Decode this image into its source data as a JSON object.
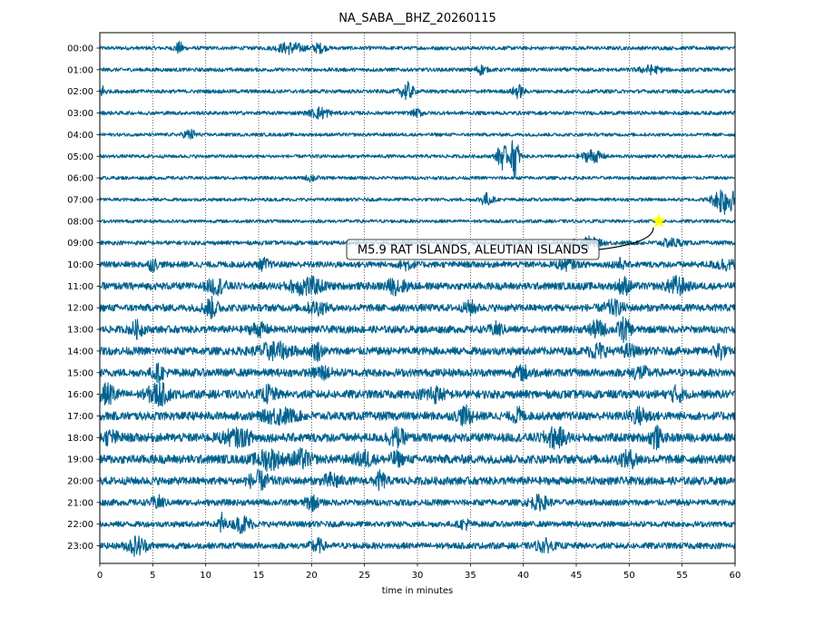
{
  "chart_data": {
    "type": "line",
    "title": "NA_SABA__BHZ_20260115",
    "xlabel": "time in minutes",
    "ylabel": "",
    "xlim": [
      0,
      60
    ],
    "x_ticks": [
      0,
      5,
      10,
      15,
      20,
      25,
      30,
      35,
      40,
      45,
      50,
      55,
      60
    ],
    "x_tick_labels": [
      "0",
      "5",
      "10",
      "15",
      "20",
      "25",
      "30",
      "35",
      "40",
      "45",
      "50",
      "55",
      "60"
    ],
    "grid": "vertical dotted",
    "trace_color": "#00628f",
    "rows": [
      {
        "label": "00:00",
        "noise": 0.18,
        "bursts": [
          {
            "t": 7.5,
            "a": 0.5,
            "w": 0.4
          },
          {
            "t": 18.0,
            "a": 0.5,
            "w": 1.2
          },
          {
            "t": 20.7,
            "a": 0.4,
            "w": 0.6
          }
        ]
      },
      {
        "label": "01:00",
        "noise": 0.18,
        "bursts": [
          {
            "t": 36.0,
            "a": 0.4,
            "w": 0.5
          },
          {
            "t": 52.0,
            "a": 0.35,
            "w": 1.0
          }
        ]
      },
      {
        "label": "02:00",
        "noise": 0.18,
        "bursts": [
          {
            "t": 0.3,
            "a": 0.5,
            "w": 0.3
          },
          {
            "t": 29.0,
            "a": 0.8,
            "w": 0.6
          },
          {
            "t": 39.5,
            "a": 0.6,
            "w": 0.5
          }
        ]
      },
      {
        "label": "03:00",
        "noise": 0.18,
        "bursts": [
          {
            "t": 20.8,
            "a": 0.5,
            "w": 0.9
          },
          {
            "t": 30.0,
            "a": 0.3,
            "w": 0.5
          }
        ]
      },
      {
        "label": "04:00",
        "noise": 0.16,
        "bursts": [
          {
            "t": 8.5,
            "a": 0.45,
            "w": 0.6
          }
        ]
      },
      {
        "label": "05:00",
        "noise": 0.16,
        "bursts": [
          {
            "t": 38.0,
            "a": 1.2,
            "w": 0.5
          },
          {
            "t": 39.2,
            "a": 2.0,
            "w": 0.4
          },
          {
            "t": 46.5,
            "a": 0.6,
            "w": 0.9
          }
        ]
      },
      {
        "label": "06:00",
        "noise": 0.16,
        "bursts": [
          {
            "t": 20.0,
            "a": 0.3,
            "w": 0.5
          }
        ]
      },
      {
        "label": "07:00",
        "noise": 0.16,
        "bursts": [
          {
            "t": 36.5,
            "a": 0.55,
            "w": 0.6
          },
          {
            "t": 59.0,
            "a": 1.4,
            "w": 1.0
          }
        ]
      },
      {
        "label": "08:00",
        "noise": 0.16,
        "bursts": []
      },
      {
        "label": "09:00",
        "noise": 0.2,
        "bursts": [
          {
            "t": 46.0,
            "a": 0.5,
            "w": 1.2
          },
          {
            "t": 54.0,
            "a": 0.35,
            "w": 1.0
          }
        ]
      },
      {
        "label": "10:00",
        "noise": 0.3,
        "bursts": [
          {
            "t": 5.0,
            "a": 0.5,
            "w": 0.4
          },
          {
            "t": 15.5,
            "a": 0.45,
            "w": 0.5
          },
          {
            "t": 29.0,
            "a": 0.4,
            "w": 0.6
          },
          {
            "t": 44.0,
            "a": 0.4,
            "w": 0.8
          },
          {
            "t": 49.0,
            "a": 0.45,
            "w": 0.5
          },
          {
            "t": 59.0,
            "a": 0.4,
            "w": 1.0
          }
        ]
      },
      {
        "label": "11:00",
        "noise": 0.35,
        "bursts": [
          {
            "t": 11.0,
            "a": 0.6,
            "w": 0.9
          },
          {
            "t": 19.5,
            "a": 0.75,
            "w": 1.5
          },
          {
            "t": 28.0,
            "a": 0.6,
            "w": 1.0
          },
          {
            "t": 49.5,
            "a": 0.7,
            "w": 0.6
          },
          {
            "t": 54.5,
            "a": 0.75,
            "w": 0.9
          }
        ]
      },
      {
        "label": "12:00",
        "noise": 0.35,
        "bursts": [
          {
            "t": 10.5,
            "a": 0.8,
            "w": 0.7
          },
          {
            "t": 20.5,
            "a": 0.5,
            "w": 0.9
          },
          {
            "t": 35.0,
            "a": 0.5,
            "w": 0.6
          },
          {
            "t": 48.5,
            "a": 0.55,
            "w": 0.9
          }
        ]
      },
      {
        "label": "13:00",
        "noise": 0.35,
        "bursts": [
          {
            "t": 3.5,
            "a": 0.65,
            "w": 0.6
          },
          {
            "t": 15.0,
            "a": 0.5,
            "w": 0.8
          },
          {
            "t": 37.5,
            "a": 0.5,
            "w": 0.6
          },
          {
            "t": 47.0,
            "a": 0.65,
            "w": 0.8
          },
          {
            "t": 49.5,
            "a": 0.95,
            "w": 0.6
          }
        ]
      },
      {
        "label": "14:00",
        "noise": 0.38,
        "bursts": [
          {
            "t": 16.5,
            "a": 0.65,
            "w": 1.6
          },
          {
            "t": 20.5,
            "a": 0.7,
            "w": 0.5
          },
          {
            "t": 47.0,
            "a": 0.6,
            "w": 0.8
          },
          {
            "t": 50.0,
            "a": 0.5,
            "w": 0.6
          },
          {
            "t": 58.5,
            "a": 0.7,
            "w": 0.5
          }
        ]
      },
      {
        "label": "15:00",
        "noise": 0.38,
        "bursts": [
          {
            "t": 5.5,
            "a": 0.6,
            "w": 0.6
          },
          {
            "t": 21.0,
            "a": 0.5,
            "w": 0.8
          },
          {
            "t": 40.0,
            "a": 0.5,
            "w": 0.8
          },
          {
            "t": 51.0,
            "a": 0.5,
            "w": 0.8
          }
        ]
      },
      {
        "label": "16:00",
        "noise": 0.4,
        "bursts": [
          {
            "t": 0.8,
            "a": 0.8,
            "w": 0.8
          },
          {
            "t": 5.5,
            "a": 0.9,
            "w": 1.0
          },
          {
            "t": 16.0,
            "a": 0.7,
            "w": 0.6
          },
          {
            "t": 31.5,
            "a": 0.6,
            "w": 1.0
          },
          {
            "t": 54.5,
            "a": 0.6,
            "w": 0.6
          }
        ]
      },
      {
        "label": "17:00",
        "noise": 0.4,
        "bursts": [
          {
            "t": 17.0,
            "a": 0.6,
            "w": 1.5
          },
          {
            "t": 34.5,
            "a": 0.7,
            "w": 0.7
          },
          {
            "t": 39.5,
            "a": 0.6,
            "w": 0.5
          },
          {
            "t": 51.0,
            "a": 0.6,
            "w": 1.0
          }
        ]
      },
      {
        "label": "18:00",
        "noise": 0.42,
        "bursts": [
          {
            "t": 1.0,
            "a": 0.5,
            "w": 0.8
          },
          {
            "t": 13.0,
            "a": 0.6,
            "w": 1.5
          },
          {
            "t": 28.0,
            "a": 0.7,
            "w": 0.8
          },
          {
            "t": 43.0,
            "a": 0.8,
            "w": 1.0
          },
          {
            "t": 52.5,
            "a": 0.9,
            "w": 0.5
          }
        ]
      },
      {
        "label": "19:00",
        "noise": 0.42,
        "bursts": [
          {
            "t": 16.0,
            "a": 0.8,
            "w": 1.2
          },
          {
            "t": 19.0,
            "a": 0.7,
            "w": 0.9
          },
          {
            "t": 25.0,
            "a": 0.6,
            "w": 0.8
          },
          {
            "t": 28.0,
            "a": 0.5,
            "w": 0.6
          },
          {
            "t": 50.0,
            "a": 0.6,
            "w": 0.9
          }
        ]
      },
      {
        "label": "20:00",
        "noise": 0.38,
        "bursts": [
          {
            "t": 15.0,
            "a": 0.7,
            "w": 1.0
          },
          {
            "t": 22.0,
            "a": 0.6,
            "w": 0.8
          },
          {
            "t": 26.5,
            "a": 0.7,
            "w": 0.5
          }
        ]
      },
      {
        "label": "21:00",
        "noise": 0.3,
        "bursts": [
          {
            "t": 5.5,
            "a": 0.5,
            "w": 0.6
          },
          {
            "t": 20.0,
            "a": 0.6,
            "w": 0.6
          },
          {
            "t": 41.5,
            "a": 0.55,
            "w": 0.9
          }
        ]
      },
      {
        "label": "22:00",
        "noise": 0.28,
        "bursts": [
          {
            "t": 11.5,
            "a": 1.0,
            "w": 0.3
          },
          {
            "t": 13.5,
            "a": 0.7,
            "w": 0.8
          },
          {
            "t": 34.5,
            "a": 0.4,
            "w": 0.5
          }
        ]
      },
      {
        "label": "23:00",
        "noise": 0.3,
        "bursts": [
          {
            "t": 3.5,
            "a": 0.8,
            "w": 0.9
          },
          {
            "t": 20.5,
            "a": 0.6,
            "w": 0.6
          },
          {
            "t": 42.0,
            "a": 0.5,
            "w": 0.8
          }
        ]
      }
    ],
    "events": [
      {
        "label": "M5.9 RAT ISLANDS, ALEUTIAN ISLANDS",
        "row": "08:00",
        "t": 52.8,
        "marker": "star",
        "marker_color": "#ffff00"
      }
    ]
  }
}
